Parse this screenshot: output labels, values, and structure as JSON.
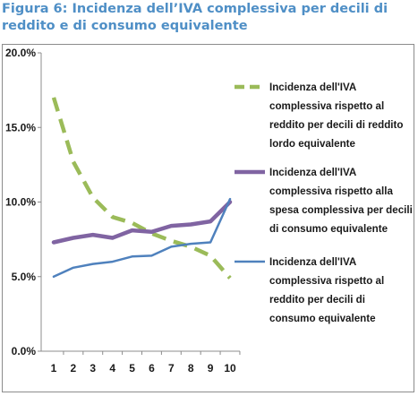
{
  "title": "Figura 6: Incidenza dell’IVA complessiva per decili di reddito e di consumo equivalente",
  "chart_data": {
    "type": "line",
    "title": "Figura 6: Incidenza dell’IVA complessiva per decili di reddito e di consumo equivalente",
    "x": [
      1,
      2,
      3,
      4,
      5,
      6,
      7,
      8,
      9,
      10
    ],
    "ylim": [
      0,
      20
    ],
    "yticks": [
      "0.0%",
      "5.0%",
      "10.0%",
      "15.0%",
      "20.0%"
    ],
    "ytick_values": [
      0,
      5,
      10,
      15,
      20
    ],
    "grid": false,
    "legend_position": "right",
    "series": [
      {
        "name": "Incidenza dell'IVA complessiva rispetto al reddito per decili di reddito lordo equivalente",
        "legend_lines": [
          "Incidenza dell'IVA",
          "complessiva rispetto al",
          "reddito per decili di reddito",
          "lordo equivalente"
        ],
        "color": "#9bbb59",
        "style": "dashed",
        "values": [
          17.0,
          12.7,
          10.3,
          9.0,
          8.6,
          7.9,
          7.4,
          7.0,
          6.4,
          4.9
        ]
      },
      {
        "name": "Incidenza dell'IVA complessiva rispetto alla spesa complessiva per decili di consumo equivalente",
        "legend_lines": [
          "Incidenza dell'IVA",
          "complessiva rispetto alla",
          "spesa complessiva per decili",
          "di consumo equivalente"
        ],
        "color": "#8064a2",
        "style": "solid",
        "values": [
          7.3,
          7.6,
          7.8,
          7.6,
          8.1,
          8.0,
          8.4,
          8.5,
          8.7,
          10.0
        ]
      },
      {
        "name": "Incidenza dell'IVA complessiva rispetto al reddito per decili di consumo equivalente",
        "legend_lines": [
          "Incidenza dell'IVA",
          "complessiva rispetto al",
          "reddito per decili di",
          "consumo equivalente"
        ],
        "color": "#4f81bd",
        "style": "solid",
        "values": [
          5.0,
          5.6,
          5.85,
          6.0,
          6.35,
          6.4,
          7.0,
          7.2,
          7.3,
          10.2
        ]
      }
    ]
  }
}
